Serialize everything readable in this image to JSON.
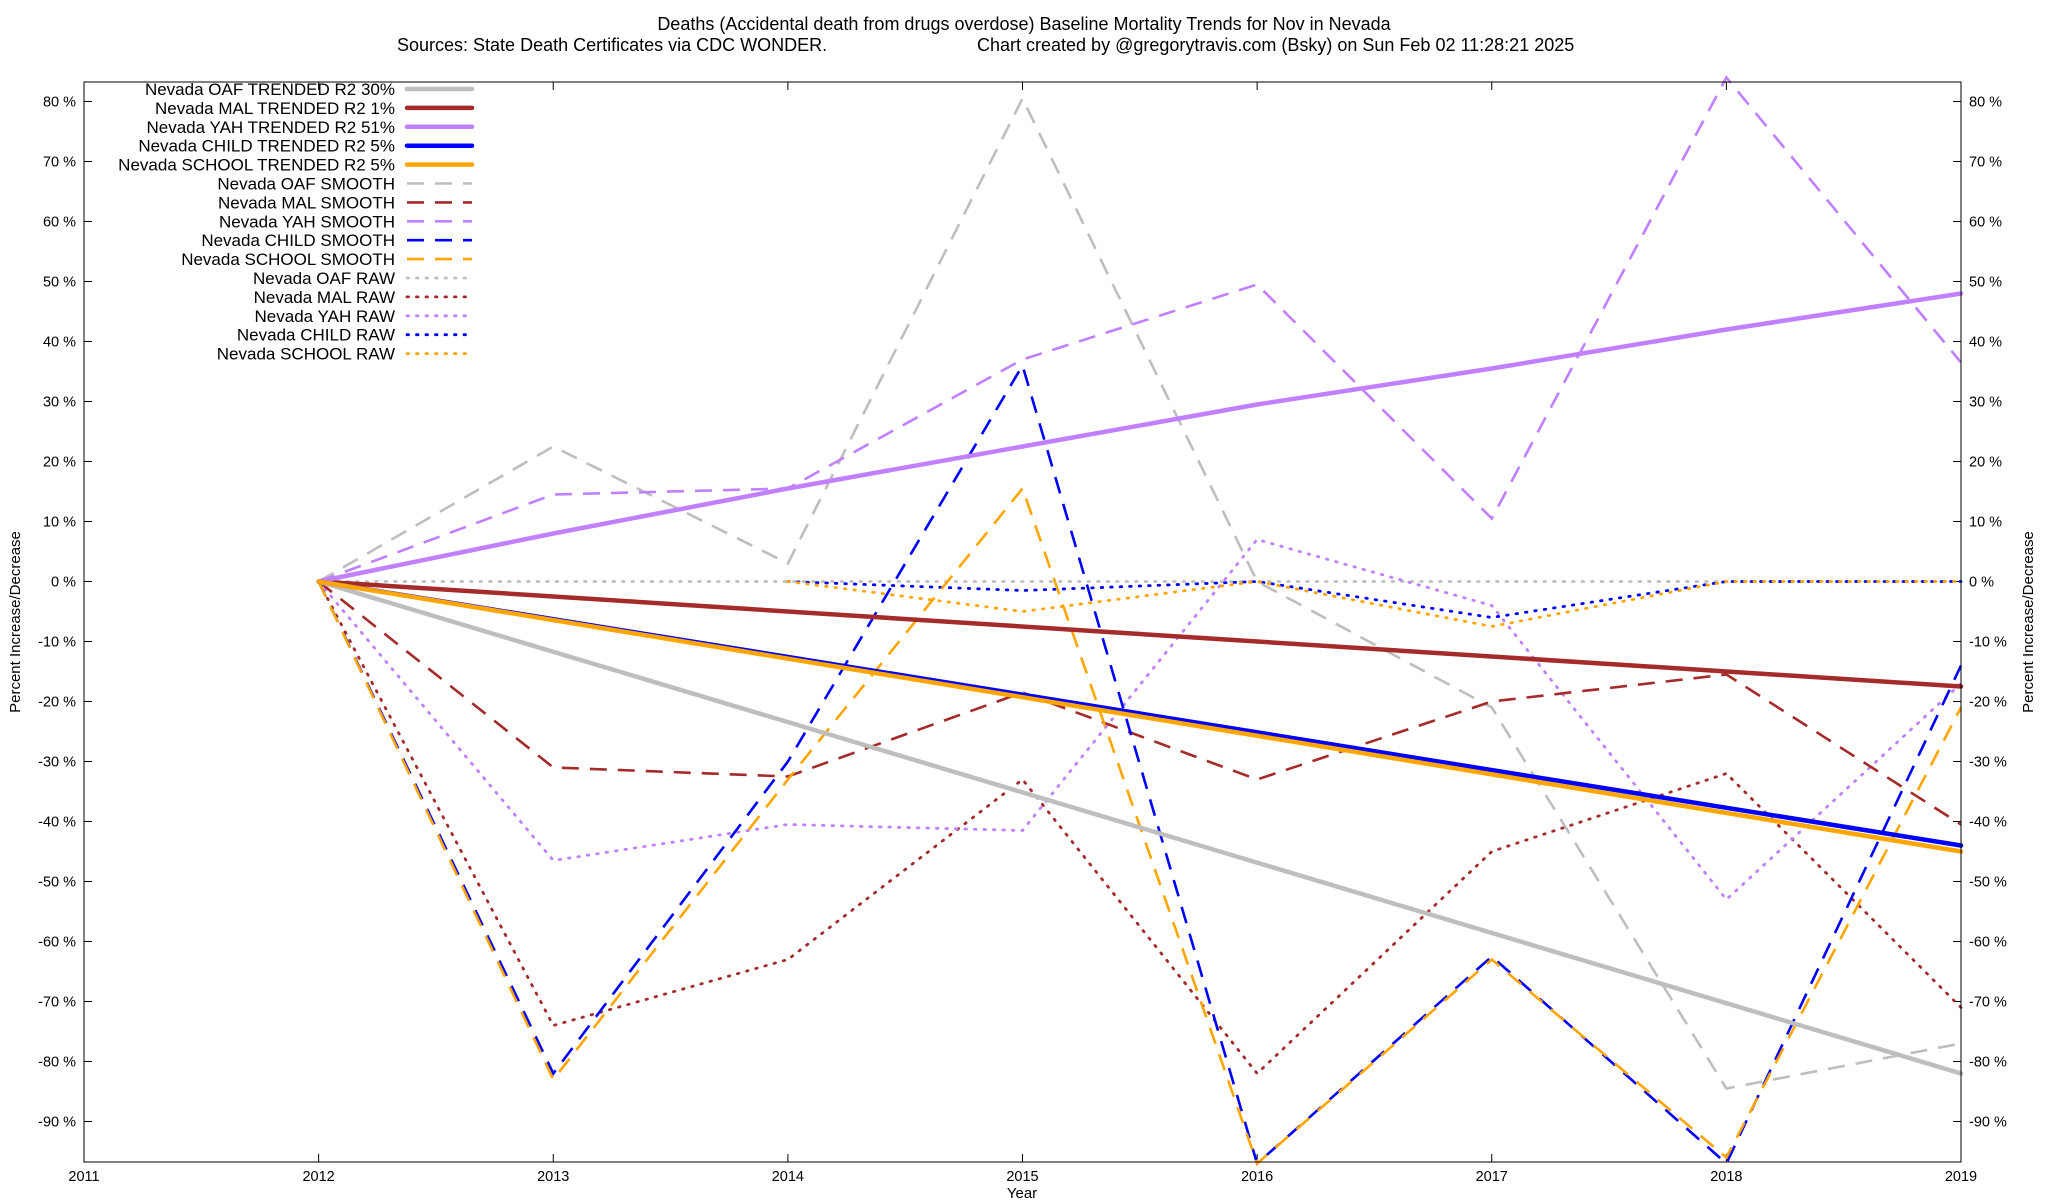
{
  "chart_data": {
    "type": "line",
    "title": "Deaths (Accidental death from drugs overdose)  Baseline Mortality Trends for Nov in Nevada",
    "subtitle_left": "Sources: State Death Certificates via CDC WONDER.",
    "subtitle_right": "Chart created by @gregorytravis.com (Bsky) on Sun Feb 02 11:28:21 2025",
    "xlabel": "Year",
    "ylabel_left": "Percent Increase/Decrease",
    "ylabel_right": "Percent Increase/Decrease",
    "xlim": [
      2011,
      2019
    ],
    "ylim": [
      -97,
      84
    ],
    "x_ticks": [
      "2011",
      "2012",
      "2013",
      "2014",
      "2015",
      "2016",
      "2017",
      "2018",
      "2019"
    ],
    "y_ticks": [
      {
        "value": 80,
        "label": "80 %"
      },
      {
        "value": 70,
        "label": "70 %"
      },
      {
        "value": 60,
        "label": "60 %"
      },
      {
        "value": 50,
        "label": "50 %"
      },
      {
        "value": 40,
        "label": "40 %"
      },
      {
        "value": 30,
        "label": "30 %"
      },
      {
        "value": 20,
        "label": "20 %"
      },
      {
        "value": 10,
        "label": "10 %"
      },
      {
        "value": 0,
        "label": "0 %"
      },
      {
        "value": -10,
        "label": "-10 %"
      },
      {
        "value": -20,
        "label": "-20 %"
      },
      {
        "value": -30,
        "label": "-30 %"
      },
      {
        "value": -40,
        "label": "-40 %"
      },
      {
        "value": -50,
        "label": "-50 %"
      },
      {
        "value": -60,
        "label": "-60 %"
      },
      {
        "value": -70,
        "label": "-70 %"
      },
      {
        "value": -80,
        "label": "-80 %"
      },
      {
        "value": -90,
        "label": "-90 %"
      }
    ],
    "grid": false,
    "legend_position": "top-left",
    "series": [
      {
        "name": "Nevada OAF TRENDED R2  30%",
        "style": "solid",
        "color": "#bebebe",
        "x": [
          2012,
          2019
        ],
        "y": [
          0,
          -82
        ]
      },
      {
        "name": "Nevada MAL TRENDED R2   1%",
        "style": "solid",
        "color": "#a52a2a",
        "x": [
          2012,
          2019
        ],
        "y": [
          0,
          -17.5
        ]
      },
      {
        "name": "Nevada YAH TRENDED R2  51%",
        "style": "solid",
        "color": "#c080ff",
        "x": [
          2012,
          2013,
          2014,
          2015,
          2016,
          2017,
          2018,
          2019
        ],
        "y": [
          0,
          8,
          15.5,
          22.5,
          29.5,
          35.5,
          42,
          48
        ]
      },
      {
        "name": "Nevada CHILD TRENDED R2   5%",
        "style": "solid",
        "color": "#0000ff",
        "x": [
          2012,
          2019
        ],
        "y": [
          0,
          -44
        ]
      },
      {
        "name": "Nevada SCHOOL TRENDED R2   5%",
        "style": "solid",
        "color": "#ffa500",
        "x": [
          2012,
          2019
        ],
        "y": [
          0,
          -45
        ]
      },
      {
        "name": "Nevada OAF SMOOTH",
        "style": "dash",
        "color": "#bebebe",
        "x": [
          2012,
          2013,
          2014,
          2015,
          2016,
          2017,
          2018,
          2019
        ],
        "y": [
          0,
          22.5,
          3,
          80.5,
          0,
          -21,
          -84.5,
          -77
        ]
      },
      {
        "name": "Nevada MAL SMOOTH",
        "style": "dash",
        "color": "#a52a2a",
        "x": [
          2012,
          2013,
          2014,
          2015,
          2016,
          2017,
          2018,
          2019
        ],
        "y": [
          0,
          -31,
          -32.5,
          -18.5,
          -33,
          -20,
          -15.5,
          -40.5
        ]
      },
      {
        "name": "Nevada YAH SMOOTH",
        "style": "dash",
        "color": "#c080ff",
        "x": [
          2012,
          2013,
          2014,
          2015,
          2016,
          2017,
          2018,
          2019
        ],
        "y": [
          0,
          14.5,
          15.5,
          37,
          49.5,
          10.5,
          84,
          36.5
        ]
      },
      {
        "name": "Nevada CHILD SMOOTH",
        "style": "dash",
        "color": "#0000ff",
        "x": [
          2012,
          2013,
          2014,
          2015,
          2016,
          2017,
          2018,
          2019
        ],
        "y": [
          0,
          -82,
          -30,
          36,
          -97,
          -62.5,
          -97,
          -14
        ]
      },
      {
        "name": "Nevada SCHOOL SMOOTH",
        "style": "dash",
        "color": "#ffa500",
        "x": [
          2012,
          2013,
          2014,
          2015,
          2016,
          2017,
          2018,
          2019
        ],
        "y": [
          0,
          -83,
          -33,
          15.5,
          -97,
          -63,
          -96,
          -21
        ]
      },
      {
        "name": "Nevada OAF RAW",
        "style": "dot",
        "color": "#bebebe",
        "x": [
          2012,
          2013,
          2014,
          2015,
          2016,
          2017,
          2018,
          2019
        ],
        "y": [
          0,
          0,
          0,
          0,
          0,
          0,
          0,
          0
        ]
      },
      {
        "name": "Nevada MAL RAW",
        "style": "dot",
        "color": "#a52a2a",
        "x": [
          2012,
          2013,
          2014,
          2015,
          2016,
          2017,
          2018,
          2019
        ],
        "y": [
          0,
          -74,
          -63,
          -33,
          -82,
          -45,
          -32,
          -71
        ]
      },
      {
        "name": "Nevada YAH RAW",
        "style": "dot",
        "color": "#c080ff",
        "x": [
          2012,
          2013,
          2014,
          2015,
          2016,
          2017,
          2018,
          2019
        ],
        "y": [
          0,
          -46.5,
          -40.5,
          -41.5,
          7,
          -4,
          -53,
          -17
        ]
      },
      {
        "name": "Nevada CHILD RAW",
        "style": "dot",
        "color": "#0000ff",
        "x": [
          2014,
          2015,
          2016,
          2017,
          2018,
          2019
        ],
        "y": [
          0,
          -1.5,
          0,
          -6,
          0,
          0
        ]
      },
      {
        "name": "Nevada SCHOOL RAW",
        "style": "dot",
        "color": "#ffa500",
        "x": [
          2014,
          2015,
          2016,
          2017,
          2018,
          2019
        ],
        "y": [
          0,
          -5,
          0,
          -7.5,
          0,
          0
        ]
      }
    ]
  }
}
